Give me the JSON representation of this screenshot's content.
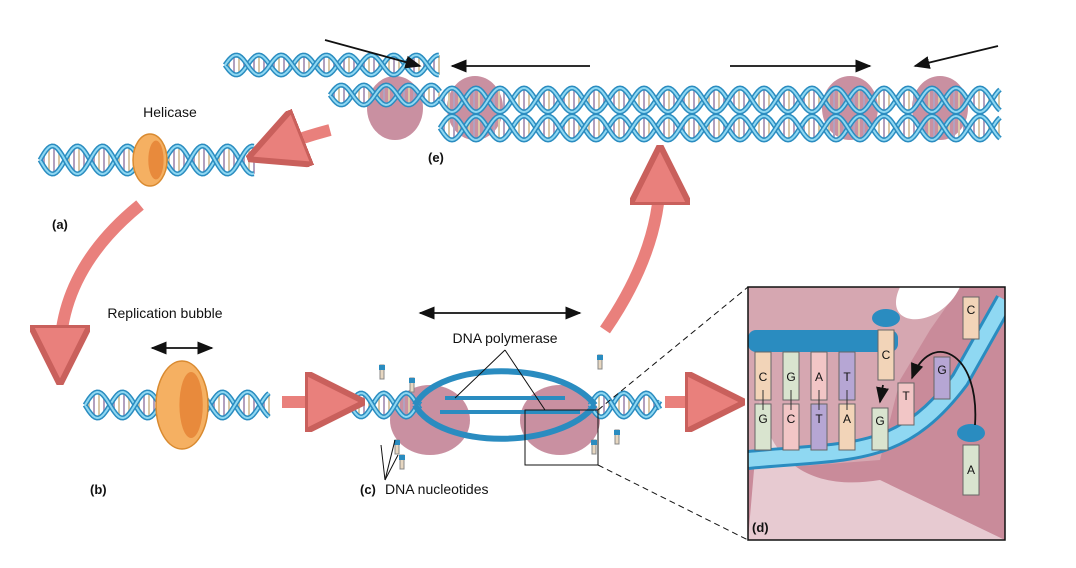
{
  "labels": {
    "a": "(a)",
    "b": "(b)",
    "c": "(c)",
    "d": "(d)",
    "e": "(e)"
  },
  "annotations": {
    "helicase": "Helicase",
    "replication_bubble": "Replication bubble",
    "dna_polymerase": "DNA polymerase",
    "dna_nucleotides": "DNA nucleotides"
  },
  "bases": {
    "top": [
      "C",
      "G",
      "A",
      "T"
    ],
    "bottom": [
      "G",
      "C",
      "T",
      "A"
    ],
    "free": [
      "C",
      "G",
      "T",
      "G",
      "C",
      "A"
    ]
  }
}
